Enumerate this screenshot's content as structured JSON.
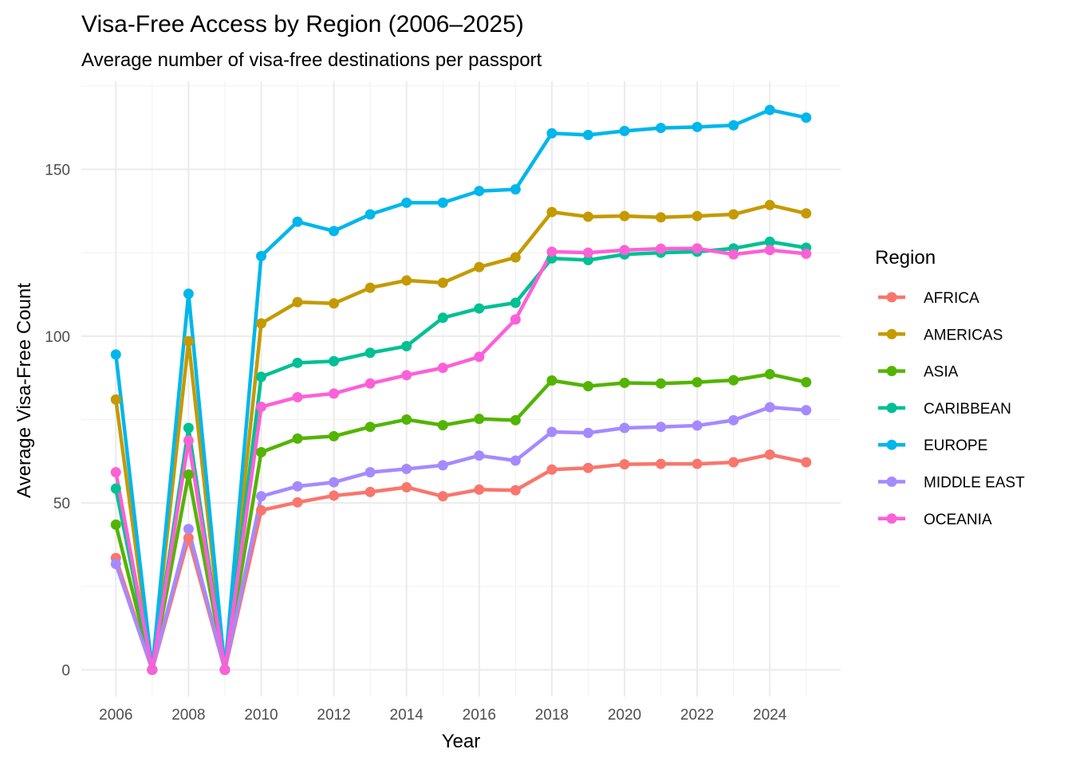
{
  "chart_data": {
    "type": "line",
    "title": "Visa-Free Access by Region (2006–2025)",
    "subtitle": "Average number of visa-free destinations per passport",
    "xlabel": "Year",
    "ylabel": "Average Visa-Free Count",
    "legend_title": "Region",
    "legend_position": "right",
    "grid": true,
    "xlim": [
      2006,
      2025
    ],
    "ylim": [
      0,
      168
    ],
    "x_ticks": [
      2006,
      2008,
      2010,
      2012,
      2014,
      2016,
      2018,
      2020,
      2022,
      2024
    ],
    "y_ticks": [
      0,
      50,
      100,
      150
    ],
    "x": [
      2006,
      2007,
      2008,
      2009,
      2010,
      2011,
      2012,
      2013,
      2014,
      2015,
      2016,
      2017,
      2018,
      2019,
      2020,
      2021,
      2022,
      2023,
      2024,
      2025
    ],
    "series": [
      {
        "name": "AFRICA",
        "color": "#F8766D",
        "values": [
          33.5,
          0,
          39.5,
          0,
          47.8,
          50.2,
          52.2,
          53.3,
          54.7,
          52.0,
          54.0,
          53.8,
          60.0,
          60.5,
          61.6,
          61.7,
          61.7,
          62.2,
          64.5,
          62.2
        ]
      },
      {
        "name": "AMERICAS",
        "color": "#C49A00",
        "values": [
          81.0,
          0,
          98.5,
          0,
          103.8,
          110.2,
          109.8,
          114.5,
          116.7,
          116.0,
          120.7,
          123.6,
          137.2,
          135.8,
          136.0,
          135.6,
          136.0,
          136.5,
          139.3,
          136.8
        ]
      },
      {
        "name": "ASIA",
        "color": "#53B400",
        "values": [
          43.5,
          0,
          58.5,
          0,
          65.2,
          69.3,
          70.0,
          72.8,
          75.0,
          73.3,
          75.2,
          74.8,
          86.7,
          85.0,
          86.0,
          85.8,
          86.2,
          86.8,
          88.6,
          86.2
        ]
      },
      {
        "name": "CARIBBEAN",
        "color": "#00C094",
        "values": [
          54.3,
          0,
          72.5,
          0,
          87.8,
          92.0,
          92.5,
          95.0,
          97.0,
          105.5,
          108.3,
          110.0,
          123.3,
          122.8,
          124.5,
          125.0,
          125.3,
          126.3,
          128.3,
          126.5
        ]
      },
      {
        "name": "EUROPE",
        "color": "#00B6EB",
        "values": [
          94.5,
          0,
          112.7,
          0,
          124.0,
          134.3,
          131.5,
          136.5,
          140.0,
          140.0,
          143.5,
          144.0,
          160.8,
          160.3,
          161.5,
          162.4,
          162.7,
          163.2,
          167.8,
          165.5
        ]
      },
      {
        "name": "MIDDLE EAST",
        "color": "#A58AFF",
        "values": [
          31.7,
          0,
          42.2,
          0,
          52.0,
          55.0,
          56.2,
          59.2,
          60.2,
          61.3,
          64.2,
          62.7,
          71.3,
          71.0,
          72.5,
          72.8,
          73.2,
          74.8,
          78.7,
          77.8
        ]
      },
      {
        "name": "OCEANIA",
        "color": "#FB61D7",
        "values": [
          59.2,
          0,
          68.7,
          0,
          78.8,
          81.7,
          82.8,
          85.8,
          88.3,
          90.5,
          93.8,
          105.0,
          125.3,
          125.0,
          125.8,
          126.2,
          126.3,
          124.5,
          125.8,
          124.7
        ]
      }
    ]
  }
}
